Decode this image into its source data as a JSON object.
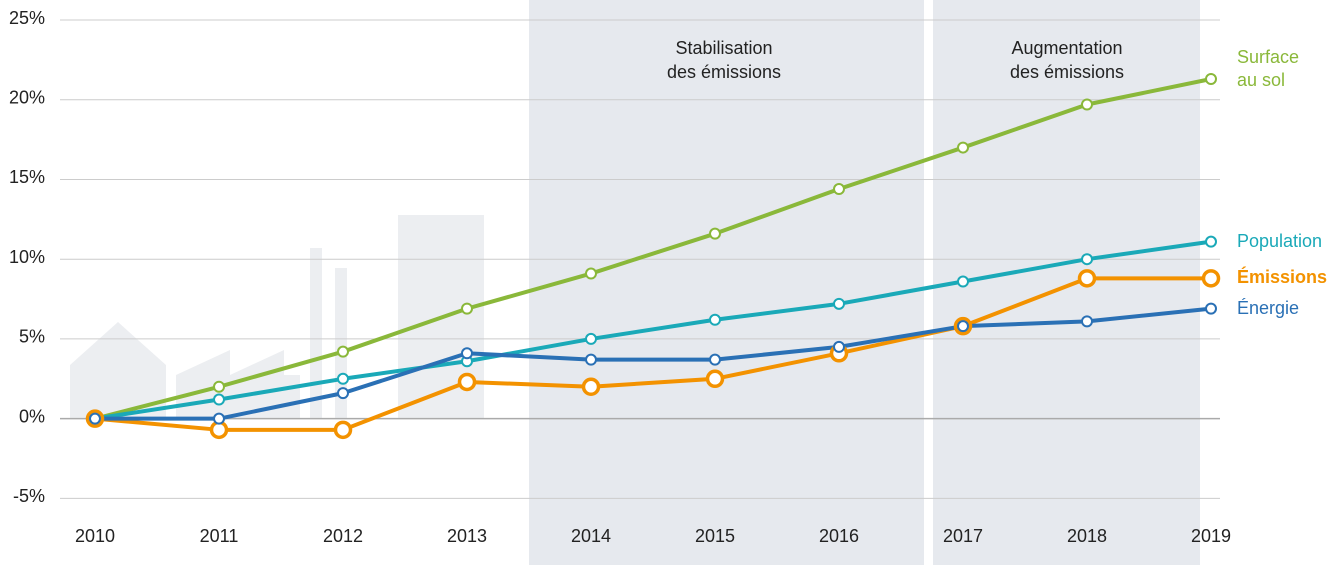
{
  "chart_data": {
    "type": "line",
    "categories": [
      "2010",
      "2011",
      "2012",
      "2013",
      "2014",
      "2015",
      "2016",
      "2017",
      "2018",
      "2019"
    ],
    "series": [
      {
        "name": "Surface au sol",
        "color": "#8ab83a",
        "values": [
          0,
          2.0,
          4.2,
          6.9,
          9.1,
          11.6,
          14.4,
          17.0,
          19.7,
          21.3
        ]
      },
      {
        "name": "Population",
        "color": "#1aa9b8",
        "values": [
          0,
          1.2,
          2.5,
          3.6,
          5.0,
          6.2,
          7.2,
          8.6,
          10.0,
          11.1
        ]
      },
      {
        "name": "Émissions",
        "color": "#f39200",
        "values": [
          0,
          -0.7,
          -0.7,
          2.3,
          2.0,
          2.5,
          4.1,
          5.8,
          8.8,
          8.8
        ]
      },
      {
        "name": "Énergie",
        "color": "#2a70b5",
        "values": [
          0,
          0.0,
          1.6,
          4.1,
          3.7,
          3.7,
          4.5,
          5.8,
          6.1,
          6.9
        ]
      }
    ],
    "annotations": [
      [
        "Stabilisation",
        "des émissions"
      ],
      [
        "Augmentation",
        "des émissions"
      ]
    ],
    "ylim": [
      -7.5,
      25
    ],
    "yticks": [
      {
        "value": -5,
        "label": "-5%"
      },
      {
        "value": 0,
        "label": "0%"
      },
      {
        "value": 5,
        "label": "5%"
      },
      {
        "value": 10,
        "label": "10%"
      },
      {
        "value": 15,
        "label": "15%"
      },
      {
        "value": 20,
        "label": "20%"
      },
      {
        "value": 25,
        "label": "25%"
      }
    ],
    "grid": true
  }
}
